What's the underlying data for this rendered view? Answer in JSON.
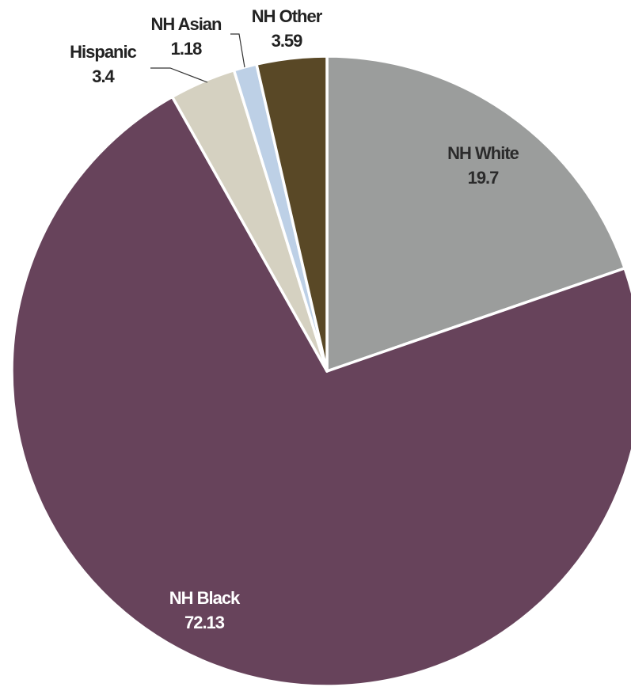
{
  "chart_data": {
    "type": "pie",
    "slices": [
      {
        "label": "NH White",
        "value": 19.7,
        "color": "#9b9d9c",
        "text_color": "#2b2b2b",
        "label_placement": "inside"
      },
      {
        "label": "NH Black",
        "value": 72.13,
        "color": "#67435b",
        "text_color": "#ffffff",
        "label_placement": "inside"
      },
      {
        "label": "Hispanic",
        "value": 3.4,
        "color": "#d5d1c1",
        "text_color": "#222222",
        "label_placement": "outside"
      },
      {
        "label": "NH Asian",
        "value": 1.18,
        "color": "#bdd0e6",
        "text_color": "#222222",
        "label_placement": "outside"
      },
      {
        "label": "NH Other",
        "value": 3.59,
        "color": "#594826",
        "text_color": "#222222",
        "label_placement": "outside"
      }
    ],
    "start": "12 o'clock",
    "direction": "clockwise",
    "legend": "none",
    "title": ""
  }
}
